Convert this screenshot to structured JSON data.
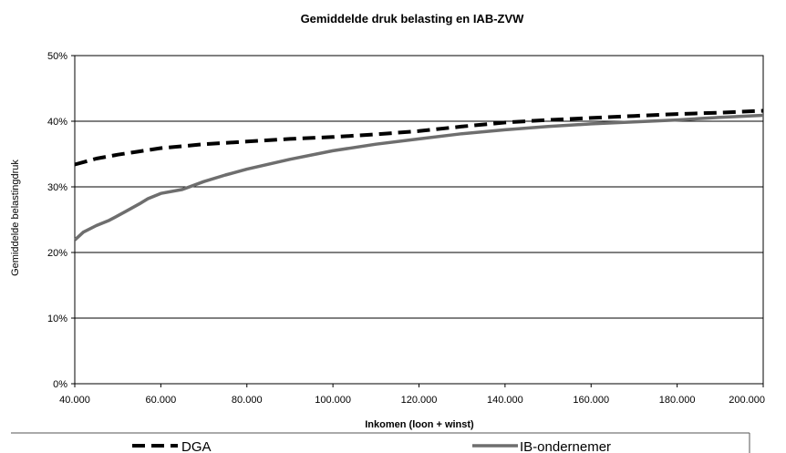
{
  "chart_data": {
    "type": "line",
    "title": "Gemiddelde druk belasting en IAB-ZVW",
    "xlabel": "Inkomen (loon + winst)",
    "ylabel": "Gemiddelde belastingdruk",
    "xlim": [
      40000,
      200000
    ],
    "ylim": [
      0,
      50
    ],
    "x_ticks": [
      40000,
      60000,
      80000,
      100000,
      120000,
      140000,
      160000,
      180000,
      200000
    ],
    "x_tick_labels": [
      "40.000",
      "60.000",
      "80.000",
      "100.000",
      "120.000",
      "140.000",
      "160.000",
      "180.000",
      "200.000"
    ],
    "y_ticks": [
      0,
      10,
      20,
      30,
      40,
      50
    ],
    "y_tick_labels": [
      "0%",
      "10%",
      "20%",
      "30%",
      "40%",
      "50%"
    ],
    "grid": true,
    "legend_position": "bottom",
    "series": [
      {
        "name": "DGA",
        "style": "dashed",
        "color": "#000000",
        "x": [
          40000,
          45000,
          50000,
          55000,
          60000,
          65000,
          70000,
          80000,
          90000,
          100000,
          110000,
          120000,
          130000,
          140000,
          150000,
          160000,
          170000,
          180000,
          190000,
          200000
        ],
        "y": [
          33.4,
          34.3,
          34.9,
          35.4,
          35.9,
          36.2,
          36.5,
          36.9,
          37.3,
          37.6,
          38.0,
          38.5,
          39.2,
          39.8,
          40.2,
          40.5,
          40.8,
          41.1,
          41.3,
          41.6
        ]
      },
      {
        "name": "IB-ondernemer",
        "style": "solid",
        "color": "#6e6e6e",
        "x": [
          40000,
          42000,
          45000,
          48000,
          50000,
          52000,
          55000,
          57000,
          60000,
          65000,
          70000,
          75000,
          80000,
          90000,
          100000,
          110000,
          120000,
          130000,
          140000,
          150000,
          160000,
          170000,
          180000,
          190000,
          200000
        ],
        "y": [
          21.9,
          23.1,
          24.1,
          24.9,
          25.6,
          26.3,
          27.4,
          28.2,
          29.0,
          29.6,
          30.8,
          31.8,
          32.7,
          34.2,
          35.5,
          36.5,
          37.3,
          38.1,
          38.7,
          39.2,
          39.6,
          39.9,
          40.2,
          40.6,
          40.9
        ]
      }
    ]
  }
}
